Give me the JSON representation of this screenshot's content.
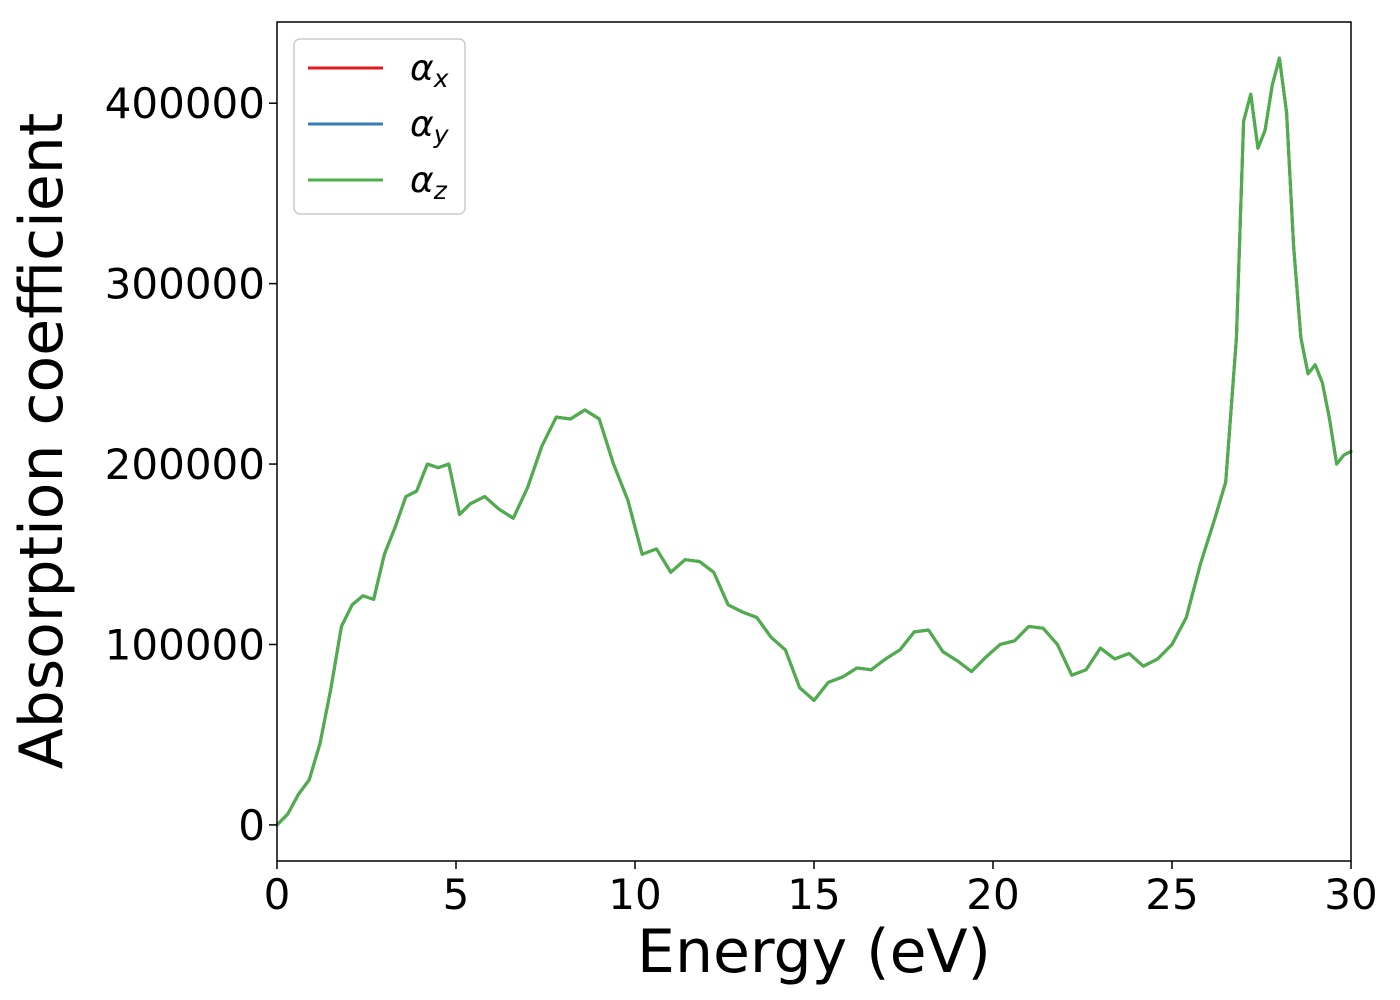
{
  "chart_data": {
    "type": "line",
    "xlabel": "Energy (eV)",
    "ylabel": "Absorption coefficient",
    "xlim": [
      0,
      30
    ],
    "ylim": [
      -20000,
      445000
    ],
    "x_ticks": [
      0,
      5,
      10,
      15,
      20,
      25,
      30
    ],
    "y_ticks": [
      0,
      100000,
      200000,
      300000,
      400000
    ],
    "grid": false,
    "legend_position": "upper-left",
    "series": [
      {
        "name": "α_x",
        "base": "α",
        "sub": "x",
        "color": "#e41a1c",
        "x": [
          0,
          0.3,
          0.6,
          0.9,
          1.2,
          1.5,
          1.8,
          2.1,
          2.4,
          2.7,
          3.0,
          3.3,
          3.6,
          3.9,
          4.2,
          4.5,
          4.8,
          5.1,
          5.4,
          5.8,
          6.2,
          6.6,
          7.0,
          7.4,
          7.8,
          8.2,
          8.6,
          9.0,
          9.4,
          9.8,
          10.2,
          10.6,
          11.0,
          11.4,
          11.8,
          12.2,
          12.6,
          13.0,
          13.4,
          13.8,
          14.2,
          14.6,
          15.0,
          15.4,
          15.8,
          16.2,
          16.6,
          17.0,
          17.4,
          17.8,
          18.2,
          18.6,
          19.0,
          19.4,
          19.8,
          20.2,
          20.6,
          21.0,
          21.4,
          21.8,
          22.2,
          22.6,
          23.0,
          23.4,
          23.8,
          24.2,
          24.6,
          25.0,
          25.4,
          25.8,
          26.2,
          26.5,
          26.8,
          27.0,
          27.2,
          27.4,
          27.6,
          27.8,
          28.0,
          28.2,
          28.4,
          28.6,
          28.8,
          29.0,
          29.2,
          29.4,
          29.6,
          29.8,
          30.0
        ],
        "values": [
          0,
          6000,
          17000,
          25000,
          45000,
          75000,
          110000,
          122000,
          127000,
          125000,
          150000,
          165000,
          182000,
          185000,
          200000,
          198000,
          200000,
          172000,
          178000,
          182000,
          175000,
          170000,
          187000,
          210000,
          226000,
          225000,
          230000,
          225000,
          200000,
          180000,
          150000,
          153000,
          140000,
          147000,
          146000,
          140000,
          122000,
          118000,
          115000,
          104000,
          97000,
          76000,
          69000,
          79000,
          82000,
          87000,
          86000,
          92000,
          97000,
          107000,
          108000,
          96000,
          91000,
          85000,
          93000,
          100000,
          102000,
          110000,
          109000,
          100000,
          83000,
          86000,
          98000,
          92000,
          95000,
          88000,
          92000,
          100000,
          115000,
          145000,
          170000,
          190000,
          270000,
          390000,
          405000,
          375000,
          385000,
          410000,
          425000,
          395000,
          320000,
          270000,
          250000,
          255000,
          245000,
          225000,
          200000,
          205000,
          207000
        ]
      },
      {
        "name": "α_y",
        "base": "α",
        "sub": "y",
        "color": "#377eb8",
        "x": [
          0,
          0.3,
          0.6,
          0.9,
          1.2,
          1.5,
          1.8,
          2.1,
          2.4,
          2.7,
          3.0,
          3.3,
          3.6,
          3.9,
          4.2,
          4.5,
          4.8,
          5.1,
          5.4,
          5.8,
          6.2,
          6.6,
          7.0,
          7.4,
          7.8,
          8.2,
          8.6,
          9.0,
          9.4,
          9.8,
          10.2,
          10.6,
          11.0,
          11.4,
          11.8,
          12.2,
          12.6,
          13.0,
          13.4,
          13.8,
          14.2,
          14.6,
          15.0,
          15.4,
          15.8,
          16.2,
          16.6,
          17.0,
          17.4,
          17.8,
          18.2,
          18.6,
          19.0,
          19.4,
          19.8,
          20.2,
          20.6,
          21.0,
          21.4,
          21.8,
          22.2,
          22.6,
          23.0,
          23.4,
          23.8,
          24.2,
          24.6,
          25.0,
          25.4,
          25.8,
          26.2,
          26.5,
          26.8,
          27.0,
          27.2,
          27.4,
          27.6,
          27.8,
          28.0,
          28.2,
          28.4,
          28.6,
          28.8,
          29.0,
          29.2,
          29.4,
          29.6,
          29.8,
          30.0
        ],
        "values": [
          0,
          6000,
          17000,
          25000,
          45000,
          75000,
          110000,
          122000,
          127000,
          125000,
          150000,
          165000,
          182000,
          185000,
          200000,
          198000,
          200000,
          172000,
          178000,
          182000,
          175000,
          170000,
          187000,
          210000,
          226000,
          225000,
          230000,
          225000,
          200000,
          180000,
          150000,
          153000,
          140000,
          147000,
          146000,
          140000,
          122000,
          118000,
          115000,
          104000,
          97000,
          76000,
          69000,
          79000,
          82000,
          87000,
          86000,
          92000,
          97000,
          107000,
          108000,
          96000,
          91000,
          85000,
          93000,
          100000,
          102000,
          110000,
          109000,
          100000,
          83000,
          86000,
          98000,
          92000,
          95000,
          88000,
          92000,
          100000,
          115000,
          145000,
          170000,
          190000,
          270000,
          390000,
          405000,
          375000,
          385000,
          410000,
          425000,
          395000,
          320000,
          270000,
          250000,
          255000,
          245000,
          225000,
          200000,
          205000,
          207000
        ]
      },
      {
        "name": "α_z",
        "base": "α",
        "sub": "z",
        "color": "#4daf4a",
        "x": [
          0,
          0.3,
          0.6,
          0.9,
          1.2,
          1.5,
          1.8,
          2.1,
          2.4,
          2.7,
          3.0,
          3.3,
          3.6,
          3.9,
          4.2,
          4.5,
          4.8,
          5.1,
          5.4,
          5.8,
          6.2,
          6.6,
          7.0,
          7.4,
          7.8,
          8.2,
          8.6,
          9.0,
          9.4,
          9.8,
          10.2,
          10.6,
          11.0,
          11.4,
          11.8,
          12.2,
          12.6,
          13.0,
          13.4,
          13.8,
          14.2,
          14.6,
          15.0,
          15.4,
          15.8,
          16.2,
          16.6,
          17.0,
          17.4,
          17.8,
          18.2,
          18.6,
          19.0,
          19.4,
          19.8,
          20.2,
          20.6,
          21.0,
          21.4,
          21.8,
          22.2,
          22.6,
          23.0,
          23.4,
          23.8,
          24.2,
          24.6,
          25.0,
          25.4,
          25.8,
          26.2,
          26.5,
          26.8,
          27.0,
          27.2,
          27.4,
          27.6,
          27.8,
          28.0,
          28.2,
          28.4,
          28.6,
          28.8,
          29.0,
          29.2,
          29.4,
          29.6,
          29.8,
          30.0
        ],
        "values": [
          0,
          6000,
          17000,
          25000,
          45000,
          75000,
          110000,
          122000,
          127000,
          125000,
          150000,
          165000,
          182000,
          185000,
          200000,
          198000,
          200000,
          172000,
          178000,
          182000,
          175000,
          170000,
          187000,
          210000,
          226000,
          225000,
          230000,
          225000,
          200000,
          180000,
          150000,
          153000,
          140000,
          147000,
          146000,
          140000,
          122000,
          118000,
          115000,
          104000,
          97000,
          76000,
          69000,
          79000,
          82000,
          87000,
          86000,
          92000,
          97000,
          107000,
          108000,
          96000,
          91000,
          85000,
          93000,
          100000,
          102000,
          110000,
          109000,
          100000,
          83000,
          86000,
          98000,
          92000,
          95000,
          88000,
          92000,
          100000,
          115000,
          145000,
          170000,
          190000,
          270000,
          390000,
          405000,
          375000,
          385000,
          410000,
          425000,
          395000,
          320000,
          270000,
          250000,
          255000,
          245000,
          225000,
          200000,
          205000,
          207000
        ]
      }
    ]
  }
}
